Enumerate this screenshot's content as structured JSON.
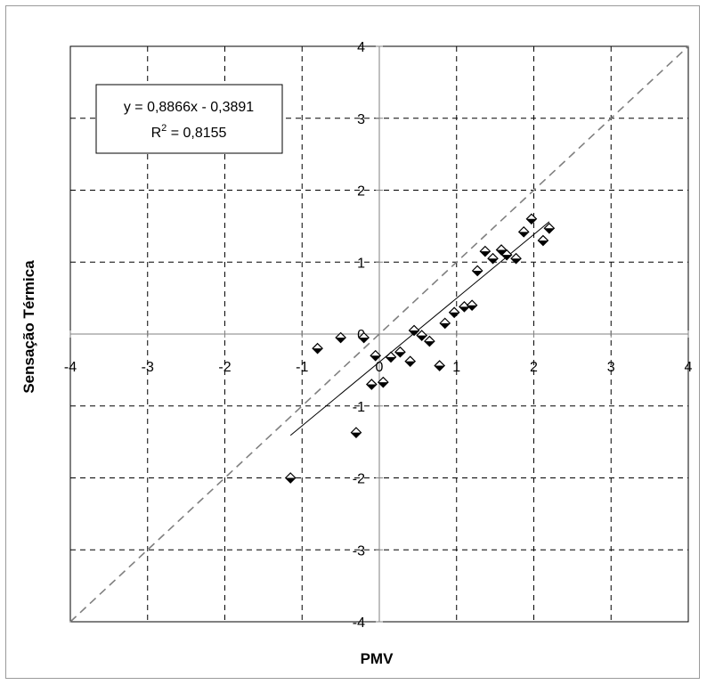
{
  "chart_data": {
    "type": "scatter",
    "title": "",
    "xlabel": "PMV",
    "ylabel": "Sensação Térmica",
    "xlim": [
      -4,
      4
    ],
    "ylim": [
      -4,
      4
    ],
    "x_ticks": [
      -4,
      -3,
      -2,
      -1,
      0,
      1,
      2,
      3,
      4
    ],
    "y_ticks": [
      -4,
      -3,
      -2,
      -1,
      0,
      1,
      2,
      3,
      4
    ],
    "grid": true,
    "grid_style": "dashed",
    "series": [
      {
        "marker": "diamond-half-filled",
        "points": [
          {
            "x": -1.15,
            "y": -2.0
          },
          {
            "x": -0.8,
            "y": -0.2
          },
          {
            "x": -0.5,
            "y": -0.05
          },
          {
            "x": -0.2,
            "y": -0.05
          },
          {
            "x": -0.3,
            "y": -1.37
          },
          {
            "x": -0.05,
            "y": -0.3
          },
          {
            "x": -0.1,
            "y": -0.7
          },
          {
            "x": 0.05,
            "y": -0.67
          },
          {
            "x": 0.15,
            "y": -0.32
          },
          {
            "x": 0.27,
            "y": -0.25
          },
          {
            "x": 0.4,
            "y": -0.38
          },
          {
            "x": 0.45,
            "y": 0.05
          },
          {
            "x": 0.55,
            "y": -0.02
          },
          {
            "x": 0.65,
            "y": -0.1
          },
          {
            "x": 0.78,
            "y": -0.44
          },
          {
            "x": 0.85,
            "y": 0.15
          },
          {
            "x": 0.97,
            "y": 0.3
          },
          {
            "x": 1.1,
            "y": 0.38
          },
          {
            "x": 1.2,
            "y": 0.4
          },
          {
            "x": 1.27,
            "y": 0.88
          },
          {
            "x": 1.37,
            "y": 1.15
          },
          {
            "x": 1.47,
            "y": 1.05
          },
          {
            "x": 1.58,
            "y": 1.17
          },
          {
            "x": 1.65,
            "y": 1.1
          },
          {
            "x": 1.77,
            "y": 1.05
          },
          {
            "x": 1.87,
            "y": 1.42
          },
          {
            "x": 1.97,
            "y": 1.6
          },
          {
            "x": 2.12,
            "y": 1.3
          },
          {
            "x": 2.2,
            "y": 1.47
          }
        ]
      }
    ],
    "trendline": {
      "slope": 0.8866,
      "intercept": -0.3891,
      "x_range": [
        -1.15,
        2.2
      ],
      "style": "solid"
    },
    "reference_line": {
      "type": "y=x",
      "style": "dashed"
    },
    "annotation": {
      "equation": "y = 0,8866x - 0,3891",
      "r2_prefix": "R",
      "r2_exponent": "2",
      "r2_value": " = 0,8155",
      "position": "top-left"
    },
    "colors": {
      "grid": "#000000",
      "identity_line": "#808080",
      "trend": "#000000",
      "marker": "#000000",
      "frame": "#9a9a9a"
    }
  }
}
